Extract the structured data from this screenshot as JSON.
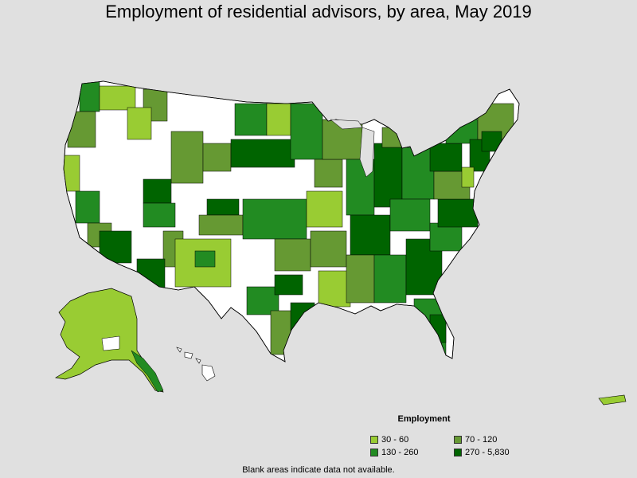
{
  "title": "Employment of residential advisors, by area, May 2019",
  "legend": {
    "title": "Employment",
    "items": [
      {
        "label": "30 - 60",
        "color": "#99cc33"
      },
      {
        "label": "70 - 120",
        "color": "#669933"
      },
      {
        "label": "130 - 260",
        "color": "#228b22"
      },
      {
        "label": "270 - 5,830",
        "color": "#006400"
      }
    ]
  },
  "note": "Blank areas indicate data not available.",
  "colors": {
    "background": "#e0e0e0",
    "no_data": "#ffffff",
    "border": "#000000"
  }
}
